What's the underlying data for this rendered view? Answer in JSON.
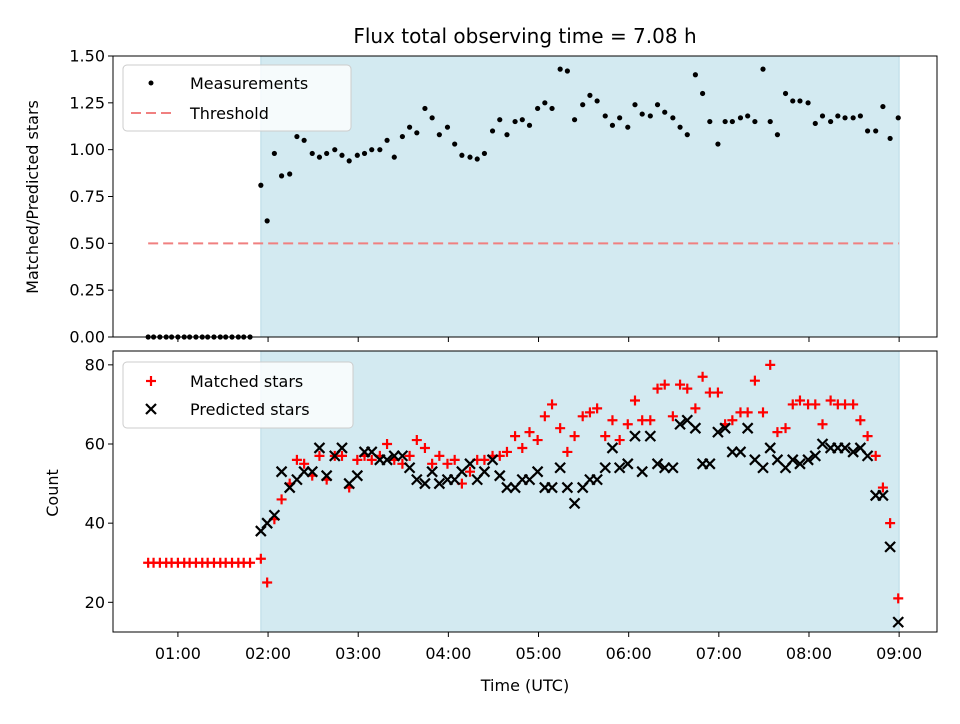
{
  "chart_data": {
    "title": "Flux total observing time = 7.08 h",
    "xlabel": "Time (UTC)",
    "x_tick_labels": [
      "01:00",
      "02:00",
      "03:00",
      "04:00",
      "05:00",
      "06:00",
      "07:00",
      "08:00",
      "09:00"
    ],
    "x_range_hours": [
      0.28,
      9.42
    ],
    "shaded_interval_hours": [
      1.92,
      9.0
    ],
    "colors": {
      "shade": "#d3eaf1",
      "measurements": "#000000",
      "threshold": "#f08080",
      "matched": "#ff0000",
      "predicted": "#000000"
    },
    "panels": [
      {
        "type": "scatter",
        "ylabel": "Matched/Predicted stars",
        "ylim": [
          0,
          1.5
        ],
        "y_tick_labels": [
          "0.00",
          "0.25",
          "0.50",
          "0.75",
          "1.00",
          "1.25",
          "1.50"
        ],
        "legend": {
          "position": "top-left",
          "entries": [
            "Measurements",
            "Threshold"
          ]
        },
        "threshold": {
          "name": "Threshold",
          "value": 0.5,
          "x_start": 0.67,
          "x_end": 9.0
        },
        "series": [
          {
            "name": "Measurements",
            "x": [
              0.67,
              0.73,
              0.8,
              0.87,
              0.93,
              1.0,
              1.07,
              1.13,
              1.2,
              1.27,
              1.33,
              1.4,
              1.47,
              1.53,
              1.6,
              1.67,
              1.73,
              1.8,
              1.92,
              1.99,
              2.07,
              2.15,
              2.24,
              2.32,
              2.4,
              2.49,
              2.57,
              2.65,
              2.74,
              2.82,
              2.9,
              2.99,
              3.07,
              3.15,
              3.24,
              3.32,
              3.4,
              3.49,
              3.57,
              3.65,
              3.74,
              3.82,
              3.9,
              3.99,
              4.07,
              4.15,
              4.24,
              4.32,
              4.4,
              4.49,
              4.57,
              4.65,
              4.74,
              4.82,
              4.9,
              4.99,
              5.07,
              5.15,
              5.24,
              5.32,
              5.4,
              5.49,
              5.57,
              5.65,
              5.74,
              5.82,
              5.9,
              5.99,
              6.07,
              6.15,
              6.24,
              6.32,
              6.4,
              6.49,
              6.57,
              6.65,
              6.74,
              6.82,
              6.9,
              6.99,
              7.07,
              7.15,
              7.24,
              7.32,
              7.4,
              7.49,
              7.57,
              7.65,
              7.74,
              7.82,
              7.9,
              7.99,
              8.07,
              8.15,
              8.24,
              8.32,
              8.4,
              8.49,
              8.57,
              8.65,
              8.74,
              8.82,
              8.9,
              8.99
            ],
            "y": [
              0,
              0,
              0,
              0,
              0,
              0,
              0,
              0,
              0,
              0,
              0,
              0,
              0,
              0,
              0,
              0,
              0,
              0,
              0.81,
              0.62,
              0.98,
              0.86,
              0.87,
              1.07,
              1.05,
              0.98,
              0.96,
              0.98,
              1.0,
              0.97,
              0.94,
              0.97,
              0.98,
              1.0,
              1.0,
              1.05,
              0.96,
              1.07,
              1.12,
              1.09,
              1.22,
              1.17,
              1.08,
              1.12,
              1.03,
              0.97,
              0.96,
              0.95,
              0.98,
              1.1,
              1.16,
              1.08,
              1.15,
              1.16,
              1.13,
              1.22,
              1.25,
              1.22,
              1.43,
              1.42,
              1.16,
              1.24,
              1.29,
              1.26,
              1.18,
              1.13,
              1.17,
              1.12,
              1.24,
              1.19,
              1.18,
              1.24,
              1.2,
              1.17,
              1.12,
              1.08,
              1.4,
              1.3,
              1.15,
              1.03,
              1.15,
              1.15,
              1.17,
              1.18,
              1.15,
              1.43,
              1.15,
              1.08,
              1.3,
              1.26,
              1.26,
              1.25,
              1.14,
              1.18,
              1.15,
              1.18,
              1.17,
              1.17,
              1.18,
              1.1,
              1.1,
              1.23,
              1.06,
              1.17
            ]
          }
        ]
      },
      {
        "type": "scatter",
        "ylabel": "Count",
        "ylim": [
          12.5,
          83.5
        ],
        "y_tick_labels": [
          "20",
          "40",
          "60",
          "80"
        ],
        "y_tick_values": [
          20,
          40,
          60,
          80
        ],
        "legend": {
          "position": "top-left",
          "entries": [
            "Matched stars",
            "Predicted stars"
          ]
        },
        "series": [
          {
            "name": "Matched stars",
            "marker": "+",
            "x": [
              0.67,
              0.73,
              0.8,
              0.87,
              0.93,
              1.0,
              1.07,
              1.13,
              1.2,
              1.27,
              1.33,
              1.4,
              1.47,
              1.53,
              1.6,
              1.67,
              1.73,
              1.8,
              1.92,
              1.99,
              2.07,
              2.15,
              2.24,
              2.32,
              2.4,
              2.49,
              2.57,
              2.65,
              2.74,
              2.82,
              2.9,
              2.99,
              3.07,
              3.15,
              3.24,
              3.32,
              3.4,
              3.49,
              3.57,
              3.65,
              3.74,
              3.82,
              3.9,
              3.99,
              4.07,
              4.15,
              4.24,
              4.32,
              4.4,
              4.49,
              4.57,
              4.65,
              4.74,
              4.82,
              4.9,
              4.99,
              5.07,
              5.15,
              5.24,
              5.32,
              5.4,
              5.49,
              5.57,
              5.65,
              5.74,
              5.82,
              5.9,
              5.99,
              6.07,
              6.15,
              6.24,
              6.32,
              6.4,
              6.49,
              6.57,
              6.65,
              6.74,
              6.82,
              6.9,
              6.99,
              7.07,
              7.15,
              7.24,
              7.32,
              7.4,
              7.49,
              7.57,
              7.65,
              7.74,
              7.82,
              7.9,
              7.99,
              8.07,
              8.15,
              8.24,
              8.32,
              8.4,
              8.49,
              8.57,
              8.65,
              8.74,
              8.82,
              8.9,
              8.99
            ],
            "y": [
              30,
              30,
              30,
              30,
              30,
              30,
              30,
              30,
              30,
              30,
              30,
              30,
              30,
              30,
              30,
              30,
              30,
              30,
              31,
              25,
              41,
              46,
              50,
              56,
              55,
              52,
              57,
              51,
              57,
              57,
              49,
              56,
              57,
              56,
              57,
              60,
              56,
              55,
              57,
              61,
              59,
              55,
              57,
              55,
              56,
              50,
              53,
              56,
              56,
              57,
              57,
              58,
              62,
              59,
              63,
              61,
              67,
              70,
              64,
              58,
              62,
              67,
              68,
              69,
              62,
              66,
              61,
              65,
              71,
              66,
              66,
              74,
              75,
              67,
              75,
              74,
              69,
              77,
              73,
              73,
              65,
              66,
              68,
              68,
              76,
              68,
              80,
              63,
              64,
              70,
              71,
              70,
              70,
              65,
              71,
              70,
              70,
              70,
              66,
              62,
              57,
              49,
              40,
              21
            ]
          },
          {
            "name": "Predicted stars",
            "marker": "x",
            "x": [
              1.92,
              1.99,
              2.07,
              2.15,
              2.24,
              2.32,
              2.4,
              2.49,
              2.57,
              2.65,
              2.74,
              2.82,
              2.9,
              2.99,
              3.07,
              3.15,
              3.24,
              3.32,
              3.4,
              3.49,
              3.57,
              3.65,
              3.74,
              3.82,
              3.9,
              3.99,
              4.07,
              4.15,
              4.24,
              4.32,
              4.4,
              4.49,
              4.57,
              4.65,
              4.74,
              4.82,
              4.9,
              4.99,
              5.07,
              5.15,
              5.24,
              5.32,
              5.4,
              5.49,
              5.57,
              5.65,
              5.74,
              5.82,
              5.9,
              5.99,
              6.07,
              6.15,
              6.24,
              6.32,
              6.4,
              6.49,
              6.57,
              6.65,
              6.74,
              6.82,
              6.9,
              6.99,
              7.07,
              7.15,
              7.24,
              7.32,
              7.4,
              7.49,
              7.57,
              7.65,
              7.74,
              7.82,
              7.9,
              7.99,
              8.07,
              8.15,
              8.24,
              8.32,
              8.4,
              8.49,
              8.57,
              8.65,
              8.74,
              8.82,
              8.9,
              8.99
            ],
            "y": [
              38,
              40,
              42,
              53,
              49,
              51,
              53,
              53,
              59,
              52,
              57,
              59,
              50,
              52,
              58,
              58,
              56,
              56,
              57,
              57,
              54,
              51,
              50,
              53,
              50,
              51,
              51,
              53,
              55,
              51,
              53,
              56,
              52,
              49,
              49,
              51,
              51,
              53,
              49,
              49,
              54,
              49,
              45,
              49,
              51,
              51,
              54,
              59,
              54,
              55,
              62,
              53,
              62,
              55,
              54,
              54,
              65,
              66,
              64,
              55,
              55,
              63,
              64,
              58,
              58,
              64,
              56,
              54,
              59,
              56,
              54,
              56,
              55,
              56,
              57,
              60,
              59,
              59,
              59,
              58,
              59,
              57,
              47,
              47,
              34,
              15
            ]
          }
        ]
      }
    ]
  }
}
